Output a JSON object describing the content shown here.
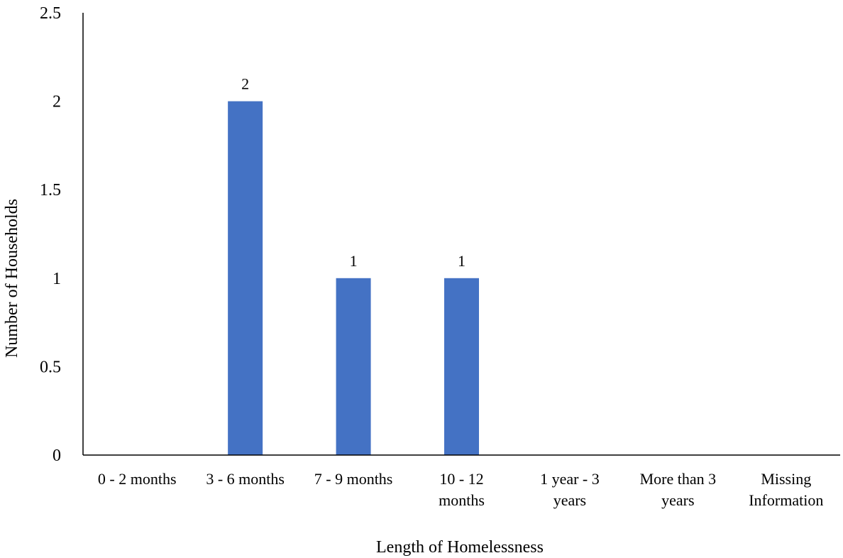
{
  "chart_data": {
    "type": "bar",
    "title": "",
    "xlabel": "Length of Homelessness",
    "ylabel": "Number of Households",
    "categories": [
      [
        "0 - 2 months"
      ],
      [
        "3 - 6 months"
      ],
      [
        "7 - 9 months"
      ],
      [
        "10 - 12",
        "months"
      ],
      [
        "1 year - 3",
        "years"
      ],
      [
        "More than 3",
        "years"
      ],
      [
        "Missing",
        "Information"
      ]
    ],
    "values": [
      0,
      2,
      1,
      1,
      0,
      0,
      0
    ],
    "data_labels": [
      "",
      "2",
      "1",
      "1",
      "",
      "",
      ""
    ],
    "ylim": [
      0,
      2.5
    ],
    "yticks": [
      0,
      0.5,
      1,
      1.5,
      2,
      2.5
    ],
    "ytick_labels": [
      "0",
      "0.5",
      "1",
      "1.5",
      "2",
      "2.5"
    ],
    "grid": false,
    "bar_color": "#4472C4"
  }
}
